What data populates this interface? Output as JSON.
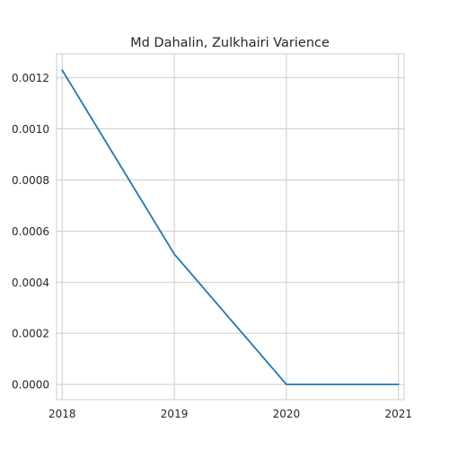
{
  "chart_data": {
    "type": "line",
    "title": "Md Dahalin, Zulkhairi Varience",
    "xlabel": "",
    "ylabel": "",
    "x": [
      2018,
      2019,
      2020,
      2021
    ],
    "x_tick_labels": [
      "2018",
      "2019",
      "2020",
      "2021"
    ],
    "y_tick_values": [
      0.0,
      0.0002,
      0.0004,
      0.0006,
      0.0008,
      0.001,
      0.0012
    ],
    "y_tick_labels": [
      "0.0000",
      "0.0002",
      "0.0004",
      "0.0006",
      "0.0008",
      "0.0010",
      "0.0012"
    ],
    "series": [
      {
        "values": [
          0.00123,
          0.00051,
          0.0,
          0.0
        ],
        "color": "#1f77b4"
      }
    ],
    "xlim": [
      2017.95,
      2021.05
    ],
    "ylim": [
      -5.94e-05,
      0.0012934
    ],
    "grid": true,
    "legend": "none"
  }
}
